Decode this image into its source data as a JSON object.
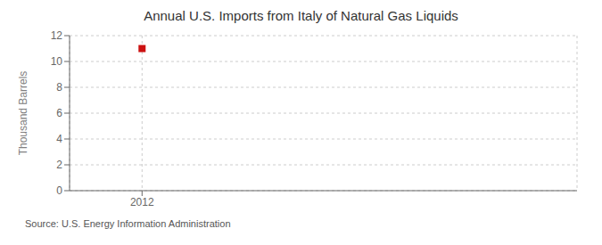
{
  "chart_data": {
    "type": "scatter",
    "title": "Annual U.S. Imports from Italy of Natural Gas Liquids",
    "ylabel": "Thousand Barrels",
    "x": [
      2012
    ],
    "values": [
      11
    ],
    "color": "#cc1111",
    "marker": "square",
    "xlim": [
      2011.7,
      2013.8
    ],
    "xticks": [
      2012
    ],
    "ylim": [
      0,
      12
    ],
    "yticks": [
      0,
      2,
      4,
      6,
      8,
      10,
      12
    ],
    "grid": true,
    "annotations": [
      "Source: U.S. Energy Information Administration"
    ]
  }
}
